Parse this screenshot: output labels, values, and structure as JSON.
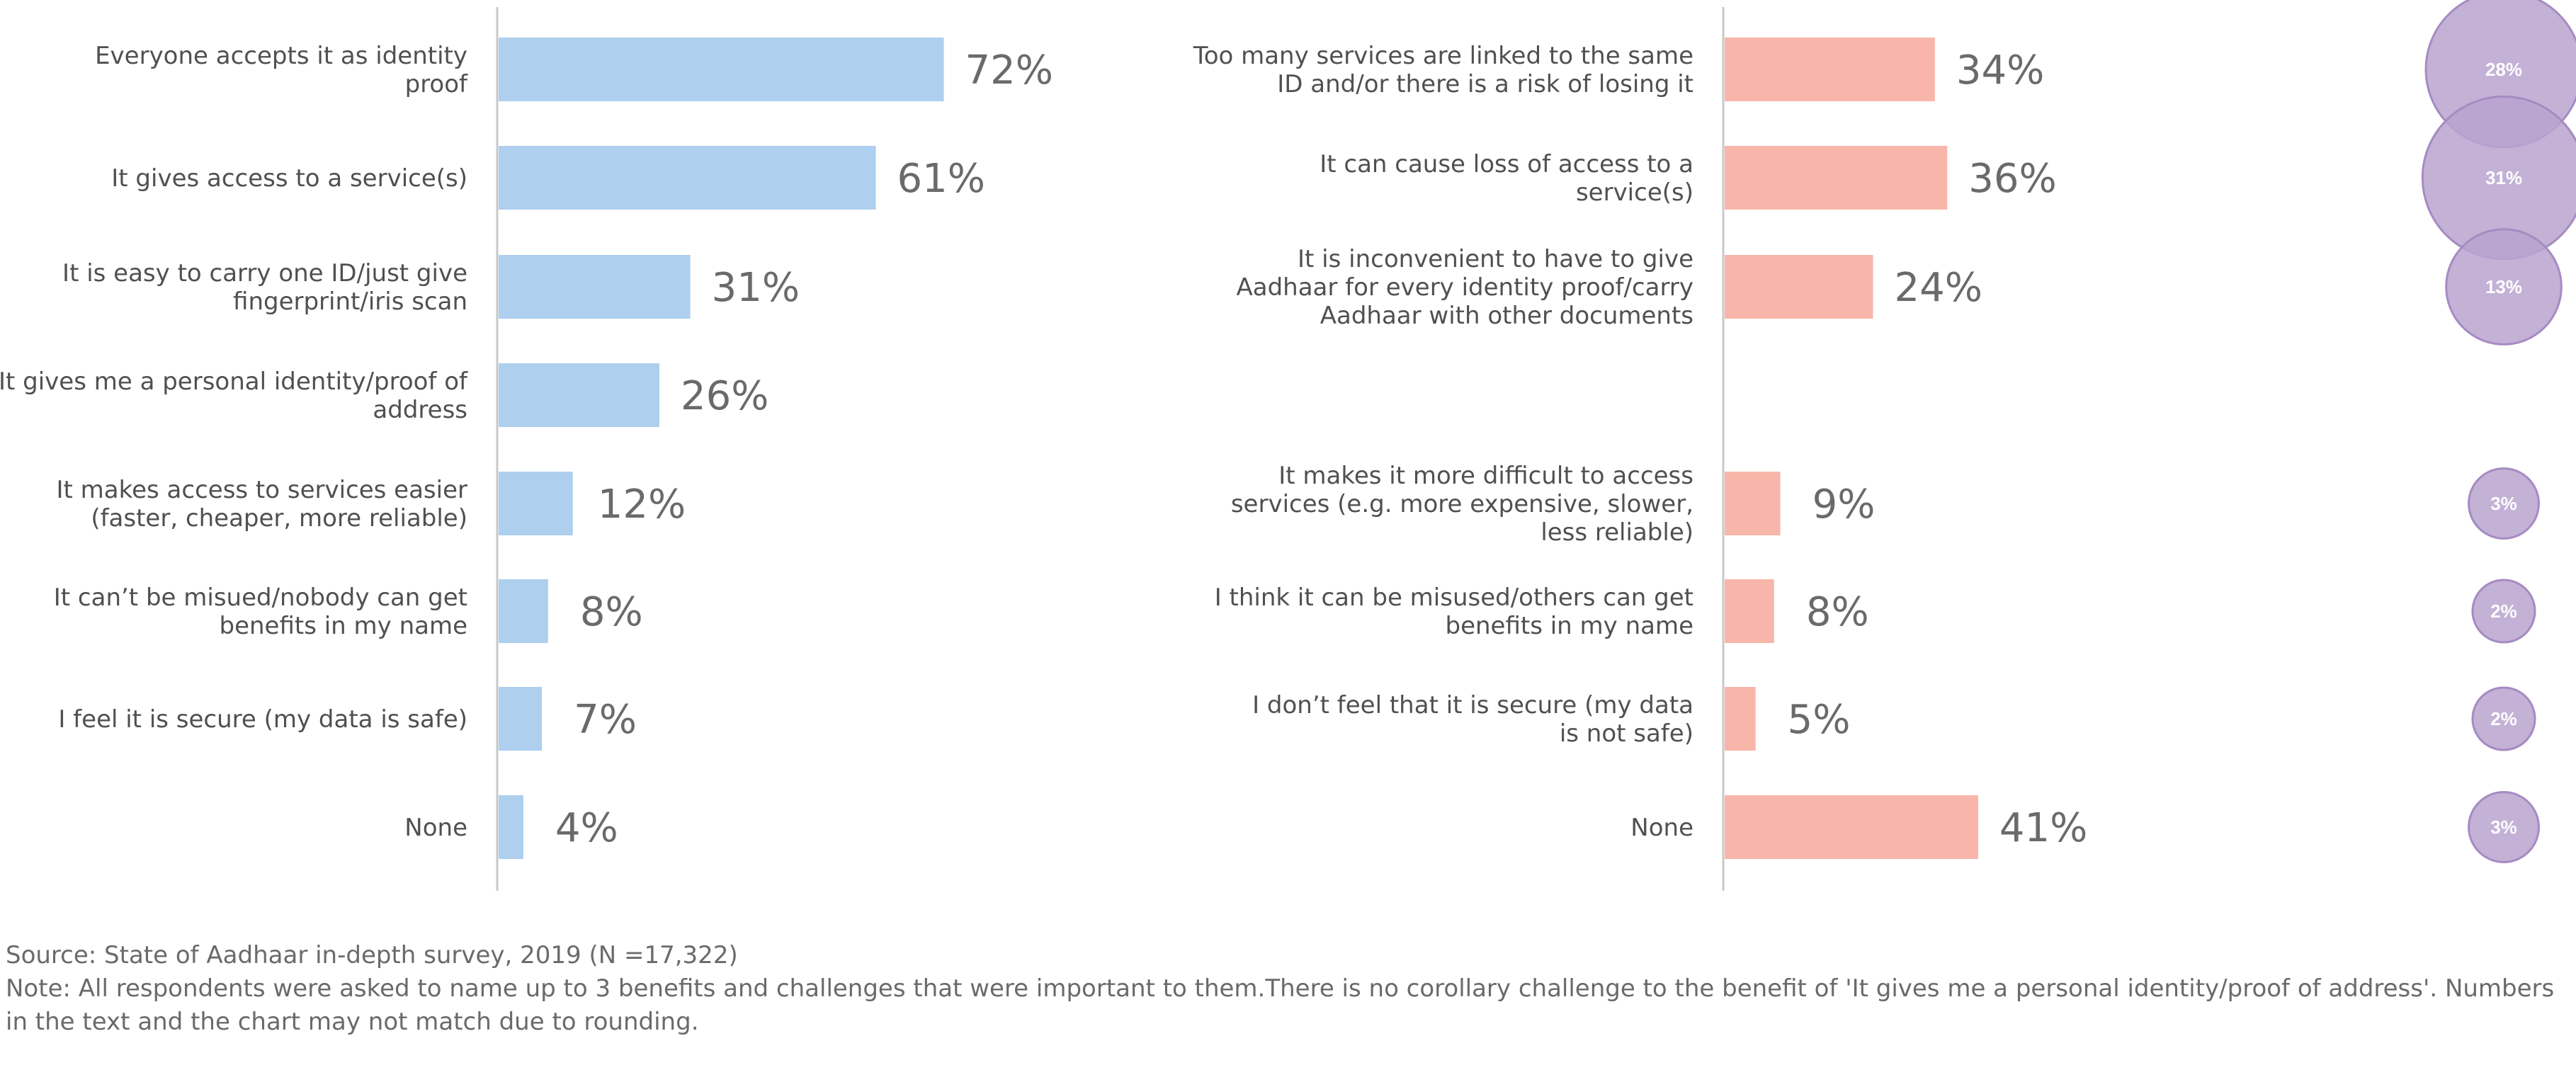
{
  "colors": {
    "benefit_bar": "#aecfee",
    "challenge_bar": "#f8b6aa",
    "bubble_fill": "#b9a3cf",
    "bubble_stroke": "#a58bc2",
    "axis": "#c8c8c8",
    "label_text": "#505050",
    "value_text": "#6a6a6a"
  },
  "chart_data": [
    {
      "type": "bar",
      "orientation": "horizontal",
      "categories": [
        [
          "Everyone accepts it as identity",
          "proof"
        ],
        [
          "It gives access to a service(s)"
        ],
        [
          "It is easy to carry one ID/just give",
          "fingerprint/iris scan"
        ],
        [
          "It gives me a personal identity/proof of",
          "address"
        ],
        [
          "It makes access to services easier",
          "(faster, cheaper, more reliable)"
        ],
        [
          "It can’t be misued/nobody can get",
          "benefits in my name"
        ],
        [
          "I feel it is secure (my data is safe)"
        ],
        [
          "None"
        ]
      ],
      "values": [
        72,
        61,
        31,
        26,
        12,
        8,
        7,
        4
      ],
      "value_labels": [
        "72%",
        "61%",
        "31%",
        "26%",
        "12%",
        "8%",
        "7%",
        "4%"
      ],
      "xlim": [
        0,
        100
      ]
    },
    {
      "type": "bar",
      "orientation": "horizontal",
      "categories": [
        [
          "Too many services are linked to the same",
          "ID and/or there is a risk of losing it"
        ],
        [
          "It can cause loss of access to a",
          "service(s)"
        ],
        [
          "It is inconvenient to have to give",
          "Aadhaar for every identity proof/carry",
          "Aadhaar with other documents"
        ],
        [],
        [
          "It makes it more difficult to access",
          "services (e.g. more expensive, slower,",
          "less reliable)"
        ],
        [
          "I think it can be misused/others can get",
          "benefits in my name"
        ],
        [
          "I don’t feel that it is secure (my data",
          "is not safe)"
        ],
        [
          "None"
        ]
      ],
      "values": [
        34,
        36,
        24,
        null,
        9,
        8,
        5,
        41
      ],
      "value_labels": [
        "34%",
        "36%",
        "24%",
        "",
        "9%",
        "8%",
        "5%",
        "41%"
      ],
      "xlim": [
        0,
        100
      ]
    },
    {
      "type": "bubble",
      "values": [
        28,
        31,
        13,
        null,
        3,
        2,
        2,
        3
      ],
      "value_labels": [
        "28%",
        "31%",
        "13%",
        "",
        "3%",
        "2%",
        "2%",
        "3%"
      ]
    }
  ],
  "footnotes": {
    "source": "Source: State of Aadhaar in-depth survey, 2019 (N =17,322)",
    "note_line1": "Note: All respondents were asked to name up to 3 benefits and challenges that were important to them.There is no corollary challenge to the benefit of 'It gives me a personal identity/proof of address'. Numbers",
    "note_line2": "in the text and the chart may not match due to rounding."
  }
}
